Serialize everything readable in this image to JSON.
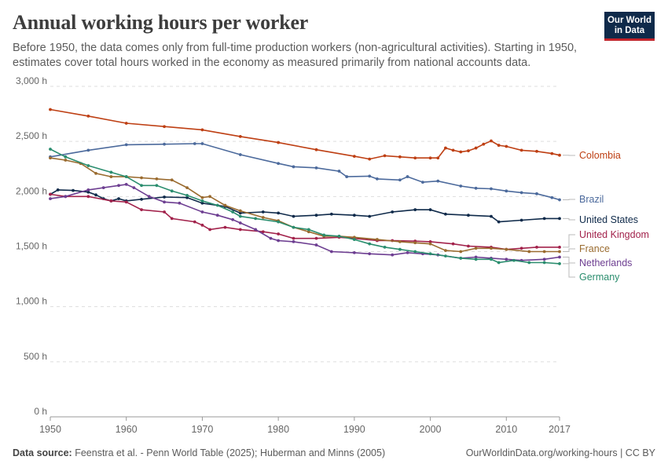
{
  "header": {
    "title": "Annual working hours per worker",
    "subtitle": "Before 1950, the data comes only from full-time production workers (non-agricultural activities). Starting in 1950, estimates cover total hours worked in the economy as measured primarily from national accounts data.",
    "logo_line1": "Our World",
    "logo_line2": "in Data"
  },
  "footer": {
    "source_label": "Data source:",
    "source_text": "Feenstra et al. - Penn World Table (2025); Huberman and Minns (2005)",
    "link": "OurWorldinData.org/working-hours | CC BY"
  },
  "chart_data": {
    "type": "line",
    "title": "Annual working hours per worker",
    "xlabel": "",
    "ylabel": "",
    "xlim": [
      1950,
      2017
    ],
    "ylim": [
      0,
      3000
    ],
    "y_ticks": [
      0,
      500,
      1000,
      1500,
      2000,
      2500,
      3000
    ],
    "y_tick_labels": [
      "0 h",
      "500 h",
      "1,000 h",
      "1,500 h",
      "2,000 h",
      "2,500 h",
      "3,000 h"
    ],
    "x_ticks": [
      1950,
      1960,
      1970,
      1980,
      1990,
      2000,
      2010,
      2017
    ],
    "x_tick_labels": [
      "1950",
      "1960",
      "1970",
      "1980",
      "1990",
      "2000",
      "2010",
      "2017"
    ],
    "grid": "horizontal dashed",
    "legend": "right-side labels",
    "series": [
      {
        "name": "Colombia",
        "color": "#be3f13",
        "points": [
          [
            1950,
            2790
          ],
          [
            1955,
            2730
          ],
          [
            1960,
            2665
          ],
          [
            1965,
            2635
          ],
          [
            1970,
            2605
          ],
          [
            1975,
            2545
          ],
          [
            1980,
            2490
          ],
          [
            1985,
            2425
          ],
          [
            1990,
            2365
          ],
          [
            1992,
            2340
          ],
          [
            1994,
            2370
          ],
          [
            1996,
            2360
          ],
          [
            1998,
            2350
          ],
          [
            2000,
            2350
          ],
          [
            2001,
            2350
          ],
          [
            2002,
            2440
          ],
          [
            2003,
            2420
          ],
          [
            2004,
            2405
          ],
          [
            2005,
            2415
          ],
          [
            2006,
            2440
          ],
          [
            2007,
            2475
          ],
          [
            2008,
            2505
          ],
          [
            2009,
            2465
          ],
          [
            2010,
            2455
          ],
          [
            2012,
            2420
          ],
          [
            2014,
            2410
          ],
          [
            2016,
            2390
          ],
          [
            2017,
            2375
          ]
        ]
      },
      {
        "name": "Brazil",
        "color": "#4c6a9c",
        "points": [
          [
            1950,
            2360
          ],
          [
            1955,
            2420
          ],
          [
            1960,
            2470
          ],
          [
            1965,
            2475
          ],
          [
            1969,
            2480
          ],
          [
            1970,
            2480
          ],
          [
            1975,
            2380
          ],
          [
            1980,
            2300
          ],
          [
            1982,
            2270
          ],
          [
            1985,
            2260
          ],
          [
            1988,
            2230
          ],
          [
            1989,
            2180
          ],
          [
            1992,
            2185
          ],
          [
            1993,
            2160
          ],
          [
            1996,
            2150
          ],
          [
            1997,
            2180
          ],
          [
            1999,
            2130
          ],
          [
            2001,
            2140
          ],
          [
            2004,
            2095
          ],
          [
            2006,
            2075
          ],
          [
            2008,
            2070
          ],
          [
            2010,
            2050
          ],
          [
            2012,
            2035
          ],
          [
            2014,
            2025
          ],
          [
            2016,
            1990
          ],
          [
            2017,
            1970
          ]
        ]
      },
      {
        "name": "United States",
        "color": "#0f2a4a",
        "points": [
          [
            1950,
            2020
          ],
          [
            1951,
            2060
          ],
          [
            1953,
            2055
          ],
          [
            1955,
            2040
          ],
          [
            1956,
            2015
          ],
          [
            1957,
            1980
          ],
          [
            1958,
            1960
          ],
          [
            1959,
            1980
          ],
          [
            1960,
            1960
          ],
          [
            1962,
            1975
          ],
          [
            1965,
            1995
          ],
          [
            1968,
            1990
          ],
          [
            1970,
            1940
          ],
          [
            1973,
            1910
          ],
          [
            1975,
            1850
          ],
          [
            1978,
            1860
          ],
          [
            1980,
            1850
          ],
          [
            1982,
            1820
          ],
          [
            1985,
            1830
          ],
          [
            1987,
            1840
          ],
          [
            1990,
            1830
          ],
          [
            1992,
            1820
          ],
          [
            1995,
            1860
          ],
          [
            1998,
            1880
          ],
          [
            2000,
            1880
          ],
          [
            2002,
            1840
          ],
          [
            2005,
            1830
          ],
          [
            2008,
            1820
          ],
          [
            2009,
            1770
          ],
          [
            2012,
            1785
          ],
          [
            2015,
            1800
          ],
          [
            2017,
            1800
          ]
        ]
      },
      {
        "name": "United Kingdom",
        "color": "#a2224b",
        "points": [
          [
            1950,
            2020
          ],
          [
            1952,
            2000
          ],
          [
            1955,
            2000
          ],
          [
            1958,
            1960
          ],
          [
            1960,
            1950
          ],
          [
            1962,
            1880
          ],
          [
            1965,
            1860
          ],
          [
            1966,
            1800
          ],
          [
            1969,
            1770
          ],
          [
            1970,
            1740
          ],
          [
            1971,
            1700
          ],
          [
            1973,
            1720
          ],
          [
            1975,
            1700
          ],
          [
            1978,
            1680
          ],
          [
            1980,
            1660
          ],
          [
            1982,
            1620
          ],
          [
            1985,
            1620
          ],
          [
            1988,
            1630
          ],
          [
            1990,
            1620
          ],
          [
            1993,
            1600
          ],
          [
            1995,
            1600
          ],
          [
            1998,
            1595
          ],
          [
            2000,
            1590
          ],
          [
            2003,
            1570
          ],
          [
            2005,
            1550
          ],
          [
            2008,
            1540
          ],
          [
            2010,
            1520
          ],
          [
            2012,
            1530
          ],
          [
            2014,
            1540
          ],
          [
            2017,
            1540
          ]
        ]
      },
      {
        "name": "France",
        "color": "#9a6b2f",
        "points": [
          [
            1950,
            2350
          ],
          [
            1952,
            2330
          ],
          [
            1954,
            2300
          ],
          [
            1956,
            2210
          ],
          [
            1958,
            2180
          ],
          [
            1960,
            2180
          ],
          [
            1962,
            2170
          ],
          [
            1964,
            2160
          ],
          [
            1966,
            2150
          ],
          [
            1968,
            2080
          ],
          [
            1970,
            1990
          ],
          [
            1971,
            2000
          ],
          [
            1973,
            1920
          ],
          [
            1975,
            1870
          ],
          [
            1978,
            1810
          ],
          [
            1980,
            1780
          ],
          [
            1982,
            1720
          ],
          [
            1984,
            1680
          ],
          [
            1986,
            1640
          ],
          [
            1988,
            1640
          ],
          [
            1990,
            1630
          ],
          [
            1993,
            1610
          ],
          [
            1996,
            1590
          ],
          [
            1998,
            1580
          ],
          [
            2000,
            1570
          ],
          [
            2002,
            1510
          ],
          [
            2004,
            1500
          ],
          [
            2006,
            1530
          ],
          [
            2008,
            1530
          ],
          [
            2010,
            1520
          ],
          [
            2013,
            1500
          ],
          [
            2015,
            1500
          ],
          [
            2017,
            1500
          ]
        ]
      },
      {
        "name": "Netherlands",
        "color": "#6d3e91",
        "points": [
          [
            1950,
            1980
          ],
          [
            1952,
            2000
          ],
          [
            1955,
            2060
          ],
          [
            1957,
            2080
          ],
          [
            1959,
            2100
          ],
          [
            1960,
            2110
          ],
          [
            1961,
            2080
          ],
          [
            1963,
            2000
          ],
          [
            1965,
            1950
          ],
          [
            1967,
            1940
          ],
          [
            1970,
            1860
          ],
          [
            1972,
            1830
          ],
          [
            1974,
            1790
          ],
          [
            1975,
            1760
          ],
          [
            1977,
            1700
          ],
          [
            1979,
            1620
          ],
          [
            1980,
            1600
          ],
          [
            1982,
            1590
          ],
          [
            1985,
            1560
          ],
          [
            1987,
            1500
          ],
          [
            1990,
            1490
          ],
          [
            1992,
            1480
          ],
          [
            1995,
            1470
          ],
          [
            1997,
            1490
          ],
          [
            1999,
            1480
          ],
          [
            2001,
            1470
          ],
          [
            2004,
            1440
          ],
          [
            2006,
            1450
          ],
          [
            2008,
            1440
          ],
          [
            2010,
            1430
          ],
          [
            2012,
            1420
          ],
          [
            2015,
            1430
          ],
          [
            2017,
            1450
          ]
        ]
      },
      {
        "name": "Germany",
        "color": "#2a8d6e",
        "points": [
          [
            1950,
            2430
          ],
          [
            1952,
            2360
          ],
          [
            1955,
            2280
          ],
          [
            1958,
            2220
          ],
          [
            1960,
            2180
          ],
          [
            1962,
            2100
          ],
          [
            1964,
            2100
          ],
          [
            1966,
            2050
          ],
          [
            1968,
            2010
          ],
          [
            1970,
            1960
          ],
          [
            1972,
            1920
          ],
          [
            1974,
            1860
          ],
          [
            1975,
            1820
          ],
          [
            1977,
            1800
          ],
          [
            1980,
            1770
          ],
          [
            1982,
            1720
          ],
          [
            1984,
            1700
          ],
          [
            1986,
            1650
          ],
          [
            1988,
            1640
          ],
          [
            1990,
            1610
          ],
          [
            1992,
            1570
          ],
          [
            1994,
            1540
          ],
          [
            1996,
            1520
          ],
          [
            1998,
            1500
          ],
          [
            2000,
            1480
          ],
          [
            2002,
            1460
          ],
          [
            2004,
            1440
          ],
          [
            2006,
            1430
          ],
          [
            2008,
            1430
          ],
          [
            2009,
            1400
          ],
          [
            2011,
            1420
          ],
          [
            2013,
            1400
          ],
          [
            2015,
            1400
          ],
          [
            2017,
            1390
          ]
        ]
      }
    ]
  }
}
